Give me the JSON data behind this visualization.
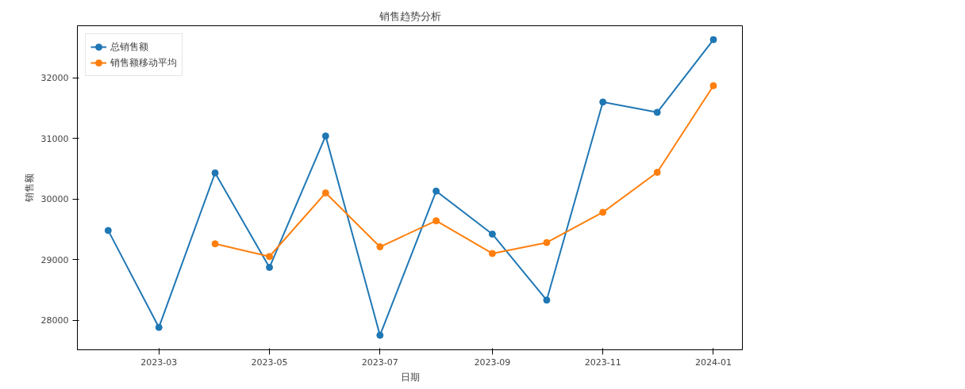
{
  "chart_data": {
    "type": "line",
    "title": "销售趋势分析",
    "xlabel": "日期",
    "ylabel": "销售额",
    "x": [
      "2023-02",
      "2023-03",
      "2023-04",
      "2023-05",
      "2023-06",
      "2023-07",
      "2023-08",
      "2023-09",
      "2023-10",
      "2023-11",
      "2023-12",
      "2024-01"
    ],
    "series": [
      {
        "name": "总销售额",
        "color": "#1f77b4",
        "values": [
          29480,
          27880,
          30430,
          28870,
          31040,
          27750,
          30130,
          29420,
          28330,
          31600,
          31430,
          32630
        ]
      },
      {
        "name": "销售额移动平均",
        "color": "#ff7f0e",
        "values": [
          null,
          null,
          29260,
          29050,
          30100,
          29210,
          29640,
          29100,
          29280,
          29780,
          30440,
          31870
        ]
      }
    ],
    "xlim": [
      "2023-01-15",
      "2024-01-17"
    ],
    "xticks": [
      "2023-03",
      "2023-05",
      "2023-07",
      "2023-09",
      "2023-11",
      "2024-01"
    ],
    "ylim": [
      27510,
      32860
    ],
    "yticks": [
      28000,
      29000,
      30000,
      31000,
      32000
    ],
    "grid": false,
    "legend": "top left",
    "marker": "circle",
    "line_style": "solid"
  }
}
